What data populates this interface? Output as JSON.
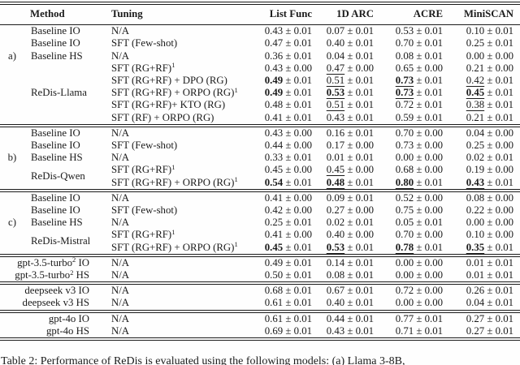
{
  "table": {
    "headers": [
      "Method",
      "Tuning",
      "List Func",
      "1D ARC",
      "ACRE",
      "MiniSCAN"
    ],
    "sections": [
      {
        "id": "a",
        "rows": [
          {
            "method": "Baseline IO",
            "tuning": "N/A",
            "cells": [
              {
                "v": "0.43",
                "pm": "± 0.01",
                "s": ""
              },
              {
                "v": "0.07",
                "pm": "± 0.01",
                "s": ""
              },
              {
                "v": "0.53",
                "pm": "± 0.01",
                "s": ""
              },
              {
                "v": "0.10",
                "pm": "± 0.01",
                "s": ""
              }
            ]
          },
          {
            "method": "Baseline IO",
            "tuning": "SFT (Few-shot)",
            "cells": [
              {
                "v": "0.47",
                "pm": "± 0.01",
                "s": ""
              },
              {
                "v": "0.40",
                "pm": "± 0.01",
                "s": ""
              },
              {
                "v": "0.70",
                "pm": "± 0.01",
                "s": ""
              },
              {
                "v": "0.25",
                "pm": "± 0.01",
                "s": ""
              }
            ]
          },
          {
            "group": "a)",
            "method": "Baseline HS",
            "tuning": "N/A",
            "cells": [
              {
                "v": "0.36",
                "pm": "± 0.01",
                "s": ""
              },
              {
                "v": "0.04",
                "pm": "± 0.01",
                "s": ""
              },
              {
                "v": "0.08",
                "pm": "± 0.01",
                "s": ""
              },
              {
                "v": "0.00",
                "pm": "± 0.00",
                "s": ""
              }
            ]
          },
          {
            "method": "ReDis-Llama",
            "method_rowspan": 5,
            "tuning": "SFT (RG+RF)",
            "tuning_sup": "1",
            "cells": [
              {
                "v": "0.43",
                "pm": "± 0.00",
                "s": ""
              },
              {
                "v": "0.47",
                "pm": "± 0.00",
                "s": "u"
              },
              {
                "v": "0.65",
                "pm": "± 0.00",
                "s": ""
              },
              {
                "v": "0.21",
                "pm": "± 0.00",
                "s": ""
              }
            ]
          },
          {
            "tuning": "SFT (RG+RF) + DPO (RG)",
            "cells": [
              {
                "v": "0.49",
                "pm": "± 0.01",
                "s": "b"
              },
              {
                "v": "0.51",
                "pm": "± 0.01",
                "s": "u"
              },
              {
                "v": "0.73",
                "pm": "± 0.01",
                "s": "bu"
              },
              {
                "v": "0.42",
                "pm": "± 0.01",
                "s": "u"
              }
            ]
          },
          {
            "tuning": "SFT (RG+RF) + ORPO (RG)",
            "tuning_sup": "1",
            "cells": [
              {
                "v": "0.49",
                "pm": "± 0.01",
                "s": "b"
              },
              {
                "v": "0.53",
                "pm": "± 0.01",
                "s": "bu"
              },
              {
                "v": "0.73",
                "pm": "± 0.01",
                "s": "bu"
              },
              {
                "v": "0.45",
                "pm": "± 0.01",
                "s": "bu"
              }
            ]
          },
          {
            "tuning": "SFT (RG+RF)+ KTO (RG)",
            "cells": [
              {
                "v": "0.48",
                "pm": "± 0.01",
                "s": ""
              },
              {
                "v": "0.51",
                "pm": "± 0.01",
                "s": "u"
              },
              {
                "v": "0.72",
                "pm": "± 0.01",
                "s": ""
              },
              {
                "v": "0.38",
                "pm": "± 0.01",
                "s": "u"
              }
            ]
          },
          {
            "tuning": "SFT (RF) + ORPO (RG)",
            "cells": [
              {
                "v": "0.41",
                "pm": "± 0.01",
                "s": ""
              },
              {
                "v": "0.43",
                "pm": "± 0.01",
                "s": ""
              },
              {
                "v": "0.59",
                "pm": "± 0.01",
                "s": ""
              },
              {
                "v": "0.21",
                "pm": "± 0.01",
                "s": ""
              }
            ]
          }
        ]
      },
      {
        "id": "b",
        "rows": [
          {
            "method": "Baseline IO",
            "tuning": "N/A",
            "cells": [
              {
                "v": "0.43",
                "pm": "± 0.00",
                "s": ""
              },
              {
                "v": "0.16",
                "pm": "± 0.01",
                "s": ""
              },
              {
                "v": "0.70",
                "pm": "± 0.00",
                "s": ""
              },
              {
                "v": "0.04",
                "pm": "± 0.00",
                "s": ""
              }
            ]
          },
          {
            "method": "Baseline IO",
            "tuning": "SFT (Few-shot)",
            "cells": [
              {
                "v": "0.44",
                "pm": "± 0.00",
                "s": ""
              },
              {
                "v": "0.17",
                "pm": "± 0.00",
                "s": ""
              },
              {
                "v": "0.73",
                "pm": "± 0.00",
                "s": ""
              },
              {
                "v": "0.25",
                "pm": "± 0.00",
                "s": ""
              }
            ]
          },
          {
            "group": "b)",
            "method": "Baseline HS",
            "tuning": "N/A",
            "cells": [
              {
                "v": "0.33",
                "pm": "± 0.01",
                "s": ""
              },
              {
                "v": "0.01",
                "pm": "± 0.01",
                "s": ""
              },
              {
                "v": "0.00",
                "pm": "± 0.00",
                "s": ""
              },
              {
                "v": "0.02",
                "pm": "± 0.01",
                "s": ""
              }
            ]
          },
          {
            "method": "ReDis-Qwen",
            "method_rowspan": 2,
            "tuning": "SFT (RG+RF)",
            "tuning_sup": "1",
            "cells": [
              {
                "v": "0.45",
                "pm": "± 0.00",
                "s": ""
              },
              {
                "v": "0.45",
                "pm": "± 0.00",
                "s": "u"
              },
              {
                "v": "0.68",
                "pm": "± 0.00",
                "s": ""
              },
              {
                "v": "0.19",
                "pm": "± 0.00",
                "s": ""
              }
            ]
          },
          {
            "tuning": "SFT (RG+RF) + ORPO (RG)",
            "tuning_sup": "1",
            "cells": [
              {
                "v": "0.54",
                "pm": "± 0.01",
                "s": "b"
              },
              {
                "v": "0.48",
                "pm": "± 0.01",
                "s": "bu"
              },
              {
                "v": "0.80",
                "pm": "± 0.01",
                "s": "bu"
              },
              {
                "v": "0.43",
                "pm": "± 0.01",
                "s": "bu"
              }
            ]
          }
        ]
      },
      {
        "id": "c",
        "rows": [
          {
            "method": "Baseline IO",
            "tuning": "N/A",
            "cells": [
              {
                "v": "0.41",
                "pm": "± 0.00",
                "s": ""
              },
              {
                "v": "0.09",
                "pm": "± 0.01",
                "s": ""
              },
              {
                "v": "0.52",
                "pm": "± 0.00",
                "s": ""
              },
              {
                "v": "0.08",
                "pm": "± 0.00",
                "s": ""
              }
            ]
          },
          {
            "method": "Baseline IO",
            "tuning": "SFT (Few-shot)",
            "cells": [
              {
                "v": "0.42",
                "pm": "± 0.00",
                "s": ""
              },
              {
                "v": "0.27",
                "pm": "± 0.00",
                "s": ""
              },
              {
                "v": "0.75",
                "pm": "± 0.00",
                "s": ""
              },
              {
                "v": "0.22",
                "pm": "± 0.00",
                "s": ""
              }
            ]
          },
          {
            "group": "c)",
            "method": "Baseline HS",
            "tuning": "N/A",
            "cells": [
              {
                "v": "0.25",
                "pm": "± 0.01",
                "s": ""
              },
              {
                "v": "0.02",
                "pm": "± 0.01",
                "s": ""
              },
              {
                "v": "0.05",
                "pm": "± 0.01",
                "s": ""
              },
              {
                "v": "0.00",
                "pm": "± 0.00",
                "s": ""
              }
            ]
          },
          {
            "method": "ReDis-Mistral",
            "method_rowspan": 2,
            "tuning": "SFT (RG+RF)",
            "tuning_sup": "1",
            "cells": [
              {
                "v": "0.41",
                "pm": "± 0.00",
                "s": ""
              },
              {
                "v": "0.40",
                "pm": "± 0.00",
                "s": ""
              },
              {
                "v": "0.70",
                "pm": "± 0.00",
                "s": ""
              },
              {
                "v": "0.10",
                "pm": "± 0.00",
                "s": ""
              }
            ]
          },
          {
            "tuning": "SFT (RG+RF) + ORPO (RG)",
            "tuning_sup": "1",
            "cells": [
              {
                "v": "0.45",
                "pm": "± 0.01",
                "s": "b"
              },
              {
                "v": "0.53",
                "pm": "± 0.01",
                "s": "bu"
              },
              {
                "v": "0.78",
                "pm": "± 0.01",
                "s": "bu"
              },
              {
                "v": "0.35",
                "pm": "± 0.01",
                "s": "bu"
              }
            ]
          }
        ]
      },
      {
        "id": "gpt35",
        "wide": true,
        "rows": [
          {
            "method": "gpt-3.5-turbo",
            "method_sup": "2",
            "method_tail": " IO",
            "tuning": "N/A",
            "cells": [
              {
                "v": "0.49",
                "pm": "± 0.01",
                "s": ""
              },
              {
                "v": "0.14",
                "pm": "± 0.01",
                "s": ""
              },
              {
                "v": "0.00",
                "pm": "± 0.00",
                "s": ""
              },
              {
                "v": "0.01",
                "pm": "± 0.01",
                "s": ""
              }
            ]
          },
          {
            "method": "gpt-3.5-turbo",
            "method_sup": "2",
            "method_tail": " HS",
            "tuning": "N/A",
            "cells": [
              {
                "v": "0.50",
                "pm": "± 0.01",
                "s": ""
              },
              {
                "v": "0.08",
                "pm": "± 0.01",
                "s": ""
              },
              {
                "v": "0.00",
                "pm": "± 0.00",
                "s": ""
              },
              {
                "v": "0.01",
                "pm": "± 0.01",
                "s": ""
              }
            ]
          }
        ]
      },
      {
        "id": "deepseek",
        "wide": true,
        "rows": [
          {
            "method": "deepseek v3 IO",
            "tuning": "N/A",
            "cells": [
              {
                "v": "0.68",
                "pm": "± 0.01",
                "s": ""
              },
              {
                "v": "0.67",
                "pm": "± 0.01",
                "s": ""
              },
              {
                "v": "0.72",
                "pm": "± 0.00",
                "s": ""
              },
              {
                "v": "0.26",
                "pm": "± 0.01",
                "s": ""
              }
            ]
          },
          {
            "method": "deepseek v3 HS",
            "tuning": "N/A",
            "cells": [
              {
                "v": "0.61",
                "pm": "± 0.01",
                "s": ""
              },
              {
                "v": "0.40",
                "pm": "± 0.01",
                "s": ""
              },
              {
                "v": "0.00",
                "pm": "± 0.00",
                "s": ""
              },
              {
                "v": "0.04",
                "pm": "± 0.01",
                "s": ""
              }
            ]
          }
        ]
      },
      {
        "id": "gpt4o",
        "wide": true,
        "rows": [
          {
            "method": "gpt-4o IO",
            "tuning": "N/A",
            "cells": [
              {
                "v": "0.61",
                "pm": "± 0.01",
                "s": ""
              },
              {
                "v": "0.44",
                "pm": "± 0.01",
                "s": ""
              },
              {
                "v": "0.77",
                "pm": "± 0.01",
                "s": ""
              },
              {
                "v": "0.27",
                "pm": "± 0.01",
                "s": ""
              }
            ]
          },
          {
            "method": "gpt-4o HS",
            "tuning": "N/A",
            "cells": [
              {
                "v": "0.69",
                "pm": "± 0.01",
                "s": ""
              },
              {
                "v": "0.43",
                "pm": "± 0.01",
                "s": ""
              },
              {
                "v": "0.71",
                "pm": "± 0.01",
                "s": ""
              },
              {
                "v": "0.27",
                "pm": "± 0.01",
                "s": ""
              }
            ]
          }
        ]
      }
    ],
    "caption": "Table 2: Performance of ReDis is evaluated using the following models: (a) Llama 3-8B,"
  }
}
